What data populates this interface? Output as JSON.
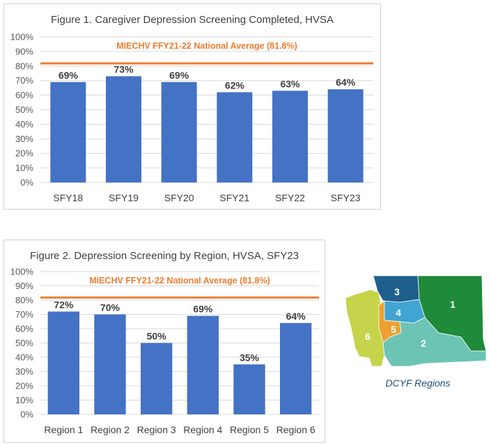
{
  "chart_data": [
    {
      "type": "bar",
      "title": "Figure 1. Caregiver Depression Screening Completed, HVSA",
      "categories": [
        "SFY18",
        "SFY19",
        "SFY20",
        "SFY21",
        "SFY22",
        "SFY23"
      ],
      "values": [
        69,
        73,
        69,
        62,
        63,
        64
      ],
      "value_labels": [
        "69%",
        "73%",
        "69%",
        "62%",
        "63%",
        "64%"
      ],
      "ylim": [
        0,
        100
      ],
      "yticks": [
        "0%",
        "10%",
        "20%",
        "30%",
        "40%",
        "50%",
        "60%",
        "70%",
        "80%",
        "90%",
        "100%"
      ],
      "reference_line": {
        "label": "MIECHV FFY21-22 National Average (81.8%)",
        "value": 81.8
      },
      "bar_color": "#4472c4",
      "line_color": "#ed7d31",
      "grid": true
    },
    {
      "type": "bar",
      "title": "Figure 2. Depression Screening by Region, HVSA, SFY23",
      "categories": [
        "Region 1",
        "Region 2",
        "Region 3",
        "Region 4",
        "Region 5",
        "Region 6"
      ],
      "values": [
        72,
        70,
        50,
        69,
        35,
        64
      ],
      "value_labels": [
        "72%",
        "70%",
        "50%",
        "69%",
        "35%",
        "64%"
      ],
      "ylim": [
        0,
        100
      ],
      "yticks": [
        "0%",
        "10%",
        "20%",
        "30%",
        "40%",
        "50%",
        "60%",
        "70%",
        "80%",
        "90%",
        "100%"
      ],
      "reference_line": {
        "label": "MIECHV FFY21-22 National Average (81.8%)",
        "value": 81.8
      },
      "bar_color": "#4472c4",
      "line_color": "#ed7d31",
      "grid": true
    }
  ],
  "map": {
    "caption": "DCYF Regions",
    "regions": [
      {
        "label": "1",
        "color": "#1e8a3a"
      },
      {
        "label": "2",
        "color": "#6cc4b4"
      },
      {
        "label": "3",
        "color": "#1f5f8b"
      },
      {
        "label": "4",
        "color": "#41a4d3"
      },
      {
        "label": "5",
        "color": "#f0a030"
      },
      {
        "label": "6",
        "color": "#c5d44a"
      }
    ]
  }
}
